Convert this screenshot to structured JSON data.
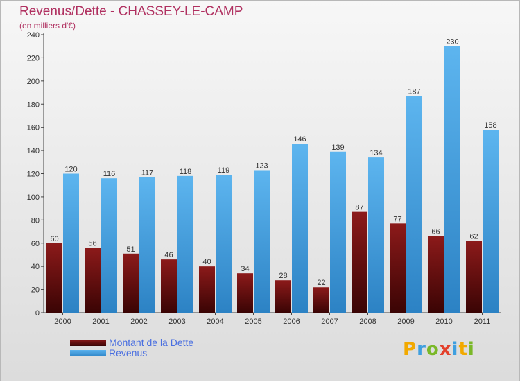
{
  "title": "Revenus/Dette - CHASSEY-LE-CAMP",
  "subtitle": "(en milliers d'€)",
  "logo": {
    "text": "Proxiti",
    "colors": [
      "#f2a900",
      "#3f9fdf",
      "#7ab828",
      "#e3402b",
      "#3f9fdf",
      "#f2a900",
      "#7ab828"
    ]
  },
  "chart_data": {
    "type": "bar",
    "title": "Revenus/Dette - CHASSEY-LE-CAMP",
    "subtitle": "(en milliers d'€)",
    "xlabel": "",
    "ylabel": "",
    "ylim": [
      0,
      240
    ],
    "yticks": [
      0,
      20,
      40,
      60,
      80,
      100,
      120,
      140,
      160,
      180,
      200,
      220,
      240
    ],
    "grid": false,
    "legend_position": "bottom-left",
    "categories": [
      "2000",
      "2001",
      "2002",
      "2003",
      "2004",
      "2005",
      "2006",
      "2007",
      "2008",
      "2009",
      "2010",
      "2011"
    ],
    "series": [
      {
        "name": "Montant de la Dette",
        "color": "#7a1414",
        "values": [
          60,
          56,
          51,
          46,
          40,
          34,
          28,
          22,
          87,
          77,
          66,
          62
        ]
      },
      {
        "name": "Revenus",
        "color": "#4aa3e6",
        "values": [
          120,
          116,
          117,
          118,
          119,
          123,
          146,
          139,
          134,
          187,
          230,
          158
        ]
      }
    ]
  }
}
